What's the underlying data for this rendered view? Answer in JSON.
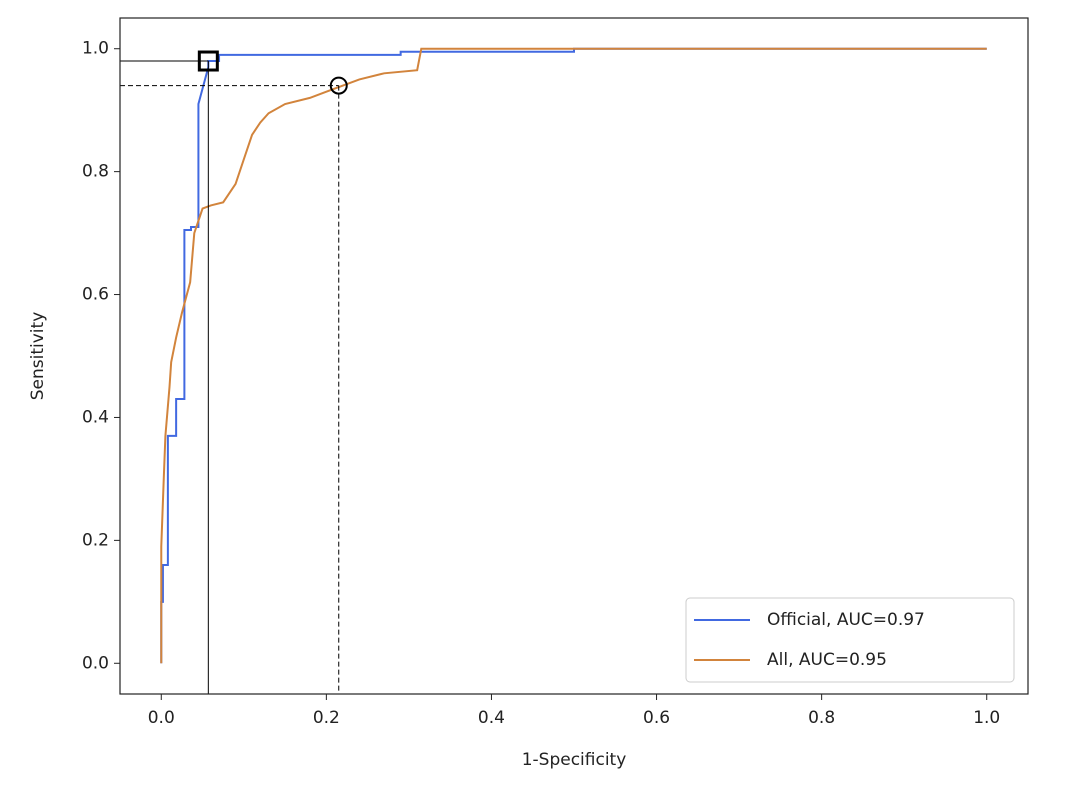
{
  "chart_data": {
    "type": "line",
    "xlabel": "1-Specificity",
    "ylabel": "Sensitivity",
    "xlim": [
      -0.05,
      1.05
    ],
    "ylim": [
      -0.05,
      1.05
    ],
    "xticks": [
      {
        "value": 0,
        "label": "0.0"
      },
      0.2,
      0.4,
      0.6,
      0.8,
      {
        "value": 1,
        "label": "1.0"
      }
    ],
    "yticks": [
      {
        "value": 0,
        "label": "0.0"
      },
      0.2,
      0.4,
      0.6,
      0.8,
      {
        "value": 1,
        "label": "1.0"
      }
    ],
    "legend": "lower right",
    "series": [
      {
        "name": "Official, AUC=0.97",
        "color": "#4169e1",
        "x": [
          0,
          0,
          0.002,
          0.002,
          0.008,
          0.008,
          0.018,
          0.018,
          0.028,
          0.028,
          0.036,
          0.036,
          0.045,
          0.045,
          0.057,
          0.057,
          0.07,
          0.07,
          0.29,
          0.29,
          0.5,
          0.5,
          1
        ],
        "values": [
          0,
          0.1,
          0.1,
          0.16,
          0.16,
          0.37,
          0.37,
          0.43,
          0.43,
          0.705,
          0.705,
          0.71,
          0.71,
          0.91,
          0.97,
          0.98,
          0.98,
          0.99,
          0.99,
          0.995,
          0.995,
          1,
          1
        ]
      },
      {
        "name": "All, AUC=0.95",
        "color": "#d2843c",
        "x": [
          0,
          0,
          0.003,
          0.005,
          0.01,
          0.012,
          0.018,
          0.025,
          0.035,
          0.04,
          0.05,
          0.06,
          0.075,
          0.09,
          0.1,
          0.11,
          0.12,
          0.13,
          0.15,
          0.18,
          0.2,
          0.22,
          0.24,
          0.27,
          0.31,
          0.315,
          1
        ],
        "values": [
          0,
          0.19,
          0.3,
          0.37,
          0.45,
          0.49,
          0.53,
          0.57,
          0.62,
          0.7,
          0.74,
          0.745,
          0.75,
          0.78,
          0.82,
          0.86,
          0.88,
          0.895,
          0.91,
          0.92,
          0.93,
          0.94,
          0.95,
          0.96,
          0.965,
          1,
          1
        ]
      }
    ],
    "markers": [
      {
        "x": 0.057,
        "y": 0.98,
        "shape": "square",
        "line": "solid"
      },
      {
        "x": 0.215,
        "y": 0.94,
        "shape": "circle",
        "line": "dashed"
      }
    ]
  }
}
